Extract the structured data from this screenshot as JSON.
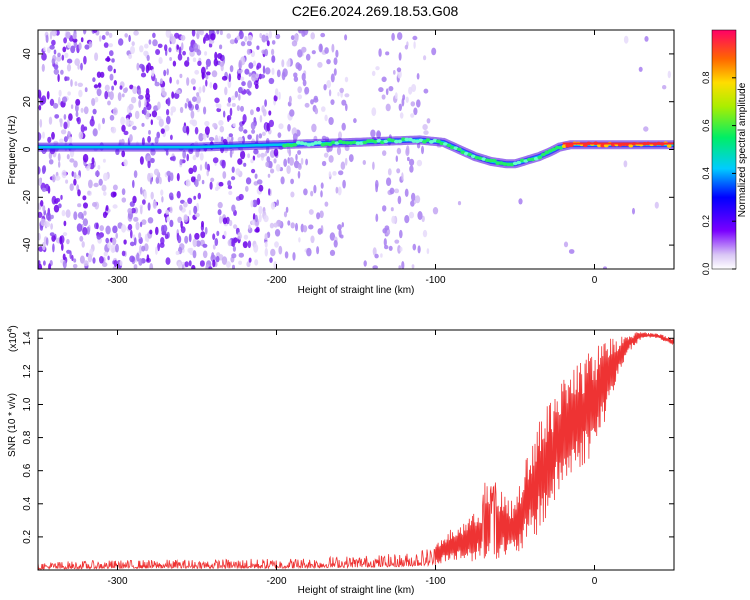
{
  "title": "C2E6.2024.269.18.53.G08",
  "chart_data": [
    {
      "type": "heatmap",
      "xlabel": "Height of straight line (km)",
      "ylabel": "Frequency (Hz)",
      "xlim": [
        -350,
        50
      ],
      "ylim": [
        -50,
        50
      ],
      "xticks": [
        -300,
        -200,
        -100,
        0
      ],
      "yticks": [
        -40,
        -20,
        0,
        20,
        40
      ],
      "colorbar": {
        "label": "Normalized spectral amplitude",
        "range": [
          0,
          1
        ],
        "ticks": [
          0.0,
          0.2,
          0.4,
          0.6,
          0.8
        ]
      },
      "signal_track": {
        "x": [
          -350,
          -300,
          -250,
          -200,
          -150,
          -110,
          -95,
          -85,
          -75,
          -65,
          -55,
          -50,
          -45,
          -35,
          -28,
          -22,
          -15,
          -5,
          0,
          10,
          25,
          50
        ],
        "y": [
          1,
          1,
          1,
          2,
          3,
          4,
          3,
          0,
          -3,
          -5,
          -6,
          -6,
          -5,
          -3,
          -1,
          1,
          2,
          2,
          2,
          2,
          2,
          2
        ]
      }
    },
    {
      "type": "line",
      "xlabel": "Height of straight line (km)",
      "ylabel": "SNR (10 * v/v)",
      "y_multiplier": "(x10",
      "y_multiplier_exp": "4",
      "y_multiplier_close": ")",
      "xlim": [
        -350,
        50
      ],
      "ylim": [
        0,
        14500
      ],
      "xticks": [
        -300,
        -200,
        -100,
        0
      ],
      "yticks": [
        2000,
        4000,
        6000,
        8000,
        10000,
        12000,
        14000
      ],
      "ytick_labels": [
        "0.2",
        "0.4",
        "0.6",
        "0.8",
        "1.0",
        "1.2",
        "1.4"
      ],
      "color": "#ee3333",
      "envelope": {
        "x": [
          -350,
          -300,
          -200,
          -120,
          -100,
          -90,
          -80,
          -70,
          -60,
          -50,
          -40,
          -30,
          -20,
          -10,
          0,
          10,
          20,
          30,
          40,
          50
        ],
        "upper": [
          500,
          600,
          700,
          1000,
          1500,
          2500,
          3000,
          4000,
          5000,
          4000,
          8000,
          10000,
          11500,
          12500,
          13500,
          14200,
          14300,
          14400,
          14300,
          14000
        ],
        "lower": [
          50,
          100,
          100,
          200,
          300,
          500,
          500,
          600,
          700,
          800,
          1500,
          3000,
          5000,
          6000,
          7000,
          10000,
          13000,
          14000,
          14000,
          13500
        ]
      }
    }
  ]
}
